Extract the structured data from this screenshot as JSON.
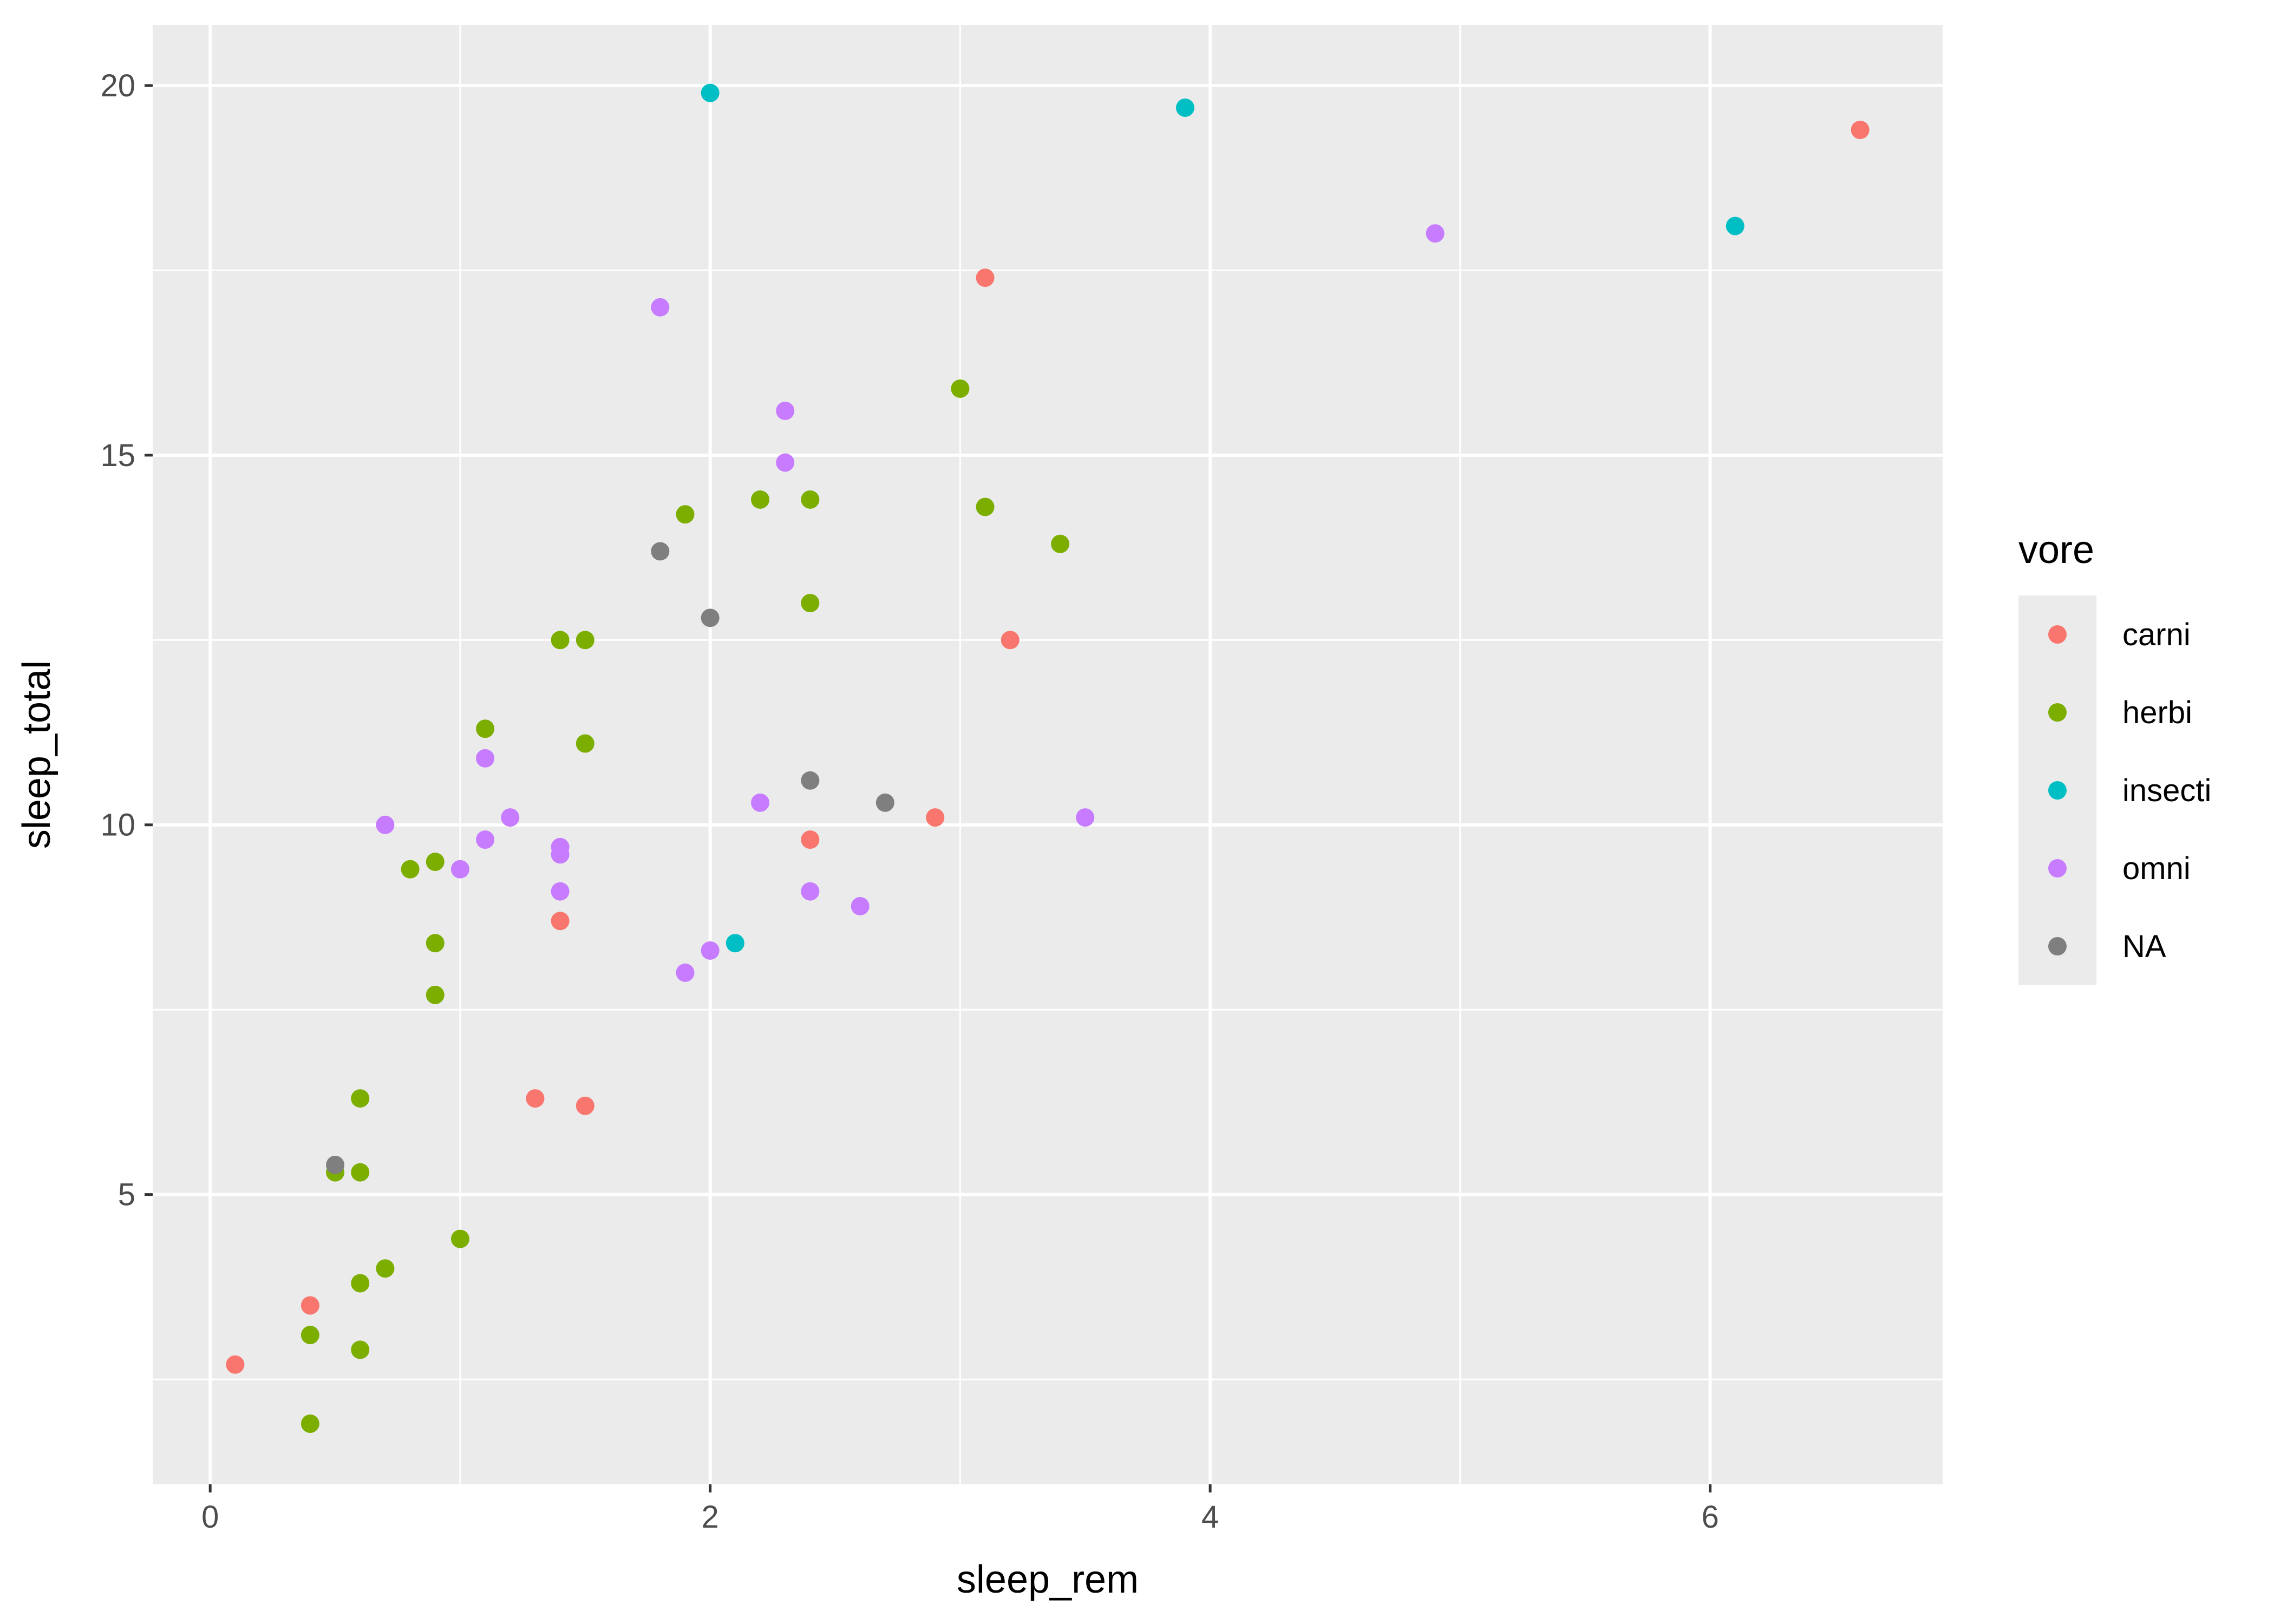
{
  "chart_data": {
    "type": "scatter",
    "xlabel": "sleep_rem",
    "ylabel": "sleep_total",
    "xlim": [
      -0.23,
      6.93
    ],
    "ylim": [
      1.08,
      20.82
    ],
    "x_ticks": [
      0,
      2,
      4,
      6
    ],
    "x_tick_labels": [
      "0",
      "2",
      "4",
      "6"
    ],
    "y_ticks": [
      5,
      10,
      15,
      20
    ],
    "y_tick_labels": [
      "5",
      "10",
      "15",
      "20"
    ],
    "grid": true,
    "legend": {
      "title": "vore",
      "position": "right"
    },
    "series": [
      {
        "name": "carni",
        "color": "#F8766D",
        "points": [
          [
            0.1,
            2.7
          ],
          [
            0.4,
            3.5
          ],
          [
            1.3,
            6.3
          ],
          [
            1.5,
            6.2
          ],
          [
            1.4,
            8.7
          ],
          [
            2.4,
            9.8
          ],
          [
            2.9,
            10.1
          ],
          [
            3.2,
            12.5
          ],
          [
            3.1,
            17.4
          ],
          [
            6.6,
            19.4
          ]
        ]
      },
      {
        "name": "herbi",
        "color": "#7CAE00",
        "points": [
          [
            0.4,
            1.9
          ],
          [
            0.4,
            3.1
          ],
          [
            0.6,
            2.9
          ],
          [
            0.6,
            3.8
          ],
          [
            0.7,
            4.0
          ],
          [
            0.5,
            5.3
          ],
          [
            0.6,
            5.3
          ],
          [
            0.6,
            6.3
          ],
          [
            1.0,
            4.4
          ],
          [
            0.9,
            7.7
          ],
          [
            0.9,
            8.4
          ],
          [
            0.8,
            9.4
          ],
          [
            0.9,
            9.5
          ],
          [
            1.1,
            11.3
          ],
          [
            1.5,
            11.1
          ],
          [
            1.4,
            12.5
          ],
          [
            1.5,
            12.5
          ],
          [
            2.4,
            13.0
          ],
          [
            1.9,
            14.2
          ],
          [
            2.2,
            14.4
          ],
          [
            2.4,
            14.4
          ],
          [
            3.1,
            14.3
          ],
          [
            3.4,
            13.8
          ],
          [
            3.0,
            15.9
          ]
        ]
      },
      {
        "name": "insecti",
        "color": "#00BFC4",
        "points": [
          [
            2.1,
            8.4
          ],
          [
            2.0,
            19.9
          ],
          [
            3.9,
            19.7
          ],
          [
            6.1,
            18.1
          ]
        ]
      },
      {
        "name": "omni",
        "color": "#C77CFF",
        "points": [
          [
            0.7,
            10.0
          ],
          [
            1.0,
            9.4
          ],
          [
            1.1,
            9.8
          ],
          [
            1.1,
            10.9
          ],
          [
            1.2,
            10.1
          ],
          [
            1.4,
            9.1
          ],
          [
            1.4,
            9.6
          ],
          [
            1.4,
            9.7
          ],
          [
            1.9,
            8.0
          ],
          [
            2.0,
            8.3
          ],
          [
            2.2,
            10.3
          ],
          [
            2.4,
            9.1
          ],
          [
            2.6,
            8.9
          ],
          [
            2.3,
            14.9
          ],
          [
            2.3,
            15.6
          ],
          [
            1.8,
            17.0
          ],
          [
            3.5,
            10.1
          ],
          [
            4.9,
            18.0
          ]
        ]
      },
      {
        "name": "NA",
        "color": "#7F7F7F",
        "points": [
          [
            0.5,
            5.4
          ],
          [
            1.8,
            13.7
          ],
          [
            2.0,
            12.8
          ],
          [
            2.4,
            10.6
          ],
          [
            2.7,
            10.3
          ]
        ]
      }
    ]
  }
}
